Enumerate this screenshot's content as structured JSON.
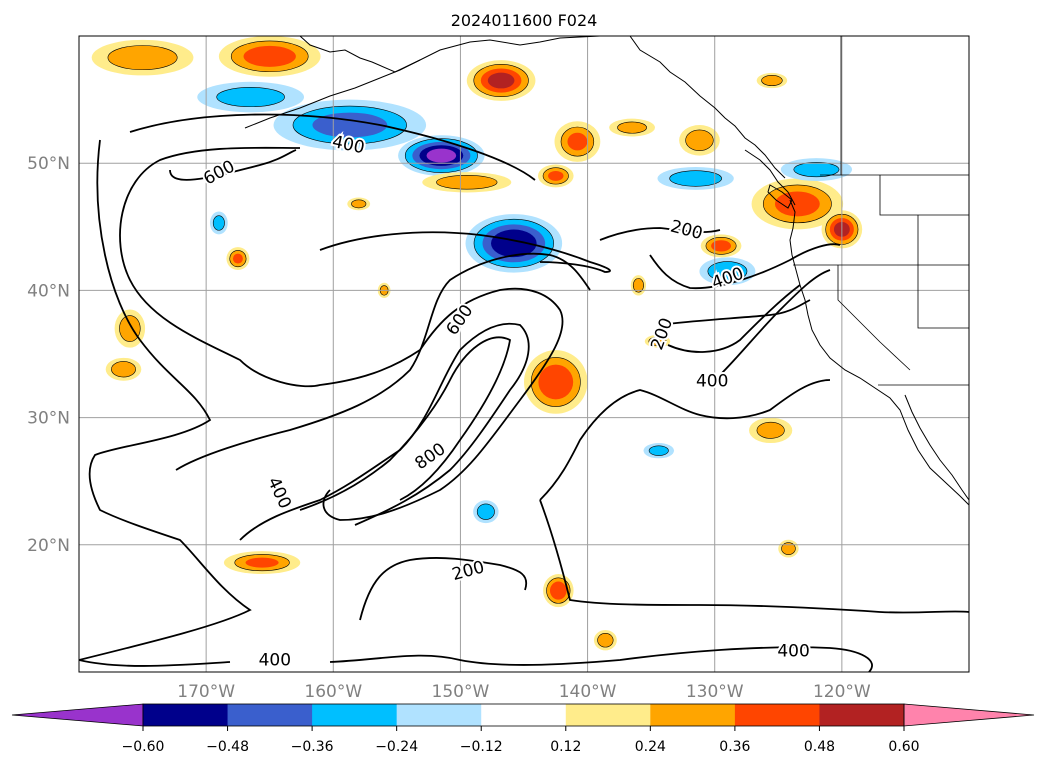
{
  "title": "2024011600 F024",
  "map": {
    "lon_range": [
      -180,
      -110
    ],
    "lat_range": [
      10,
      60
    ],
    "grid": true,
    "lat_labels": [
      {
        "lat": 50,
        "text": "50°N"
      },
      {
        "lat": 40,
        "text": "40°N"
      },
      {
        "lat": 30,
        "text": "30°N"
      },
      {
        "lat": 20,
        "text": "20°N"
      }
    ],
    "lon_labels": [
      {
        "lon": -170,
        "text": "170°W"
      },
      {
        "lon": -160,
        "text": "160°W"
      },
      {
        "lon": -150,
        "text": "150°W"
      },
      {
        "lon": -140,
        "text": "140°W"
      },
      {
        "lon": -130,
        "text": "130°W"
      },
      {
        "lon": -120,
        "text": "120°W"
      }
    ],
    "contour_labels": [
      {
        "text": "400",
        "lon": -158.8,
        "lat": 51.5,
        "rot": 12
      },
      {
        "text": "600",
        "lon": -169.0,
        "lat": 49.3,
        "rot": -28
      },
      {
        "text": "200",
        "lon": -132.2,
        "lat": 44.8,
        "rot": 15
      },
      {
        "text": "400",
        "lon": -129.0,
        "lat": 41.0,
        "rot": -20
      },
      {
        "text": "600",
        "lon": -150.1,
        "lat": 37.7,
        "rot": -55
      },
      {
        "text": "200",
        "lon": -134.2,
        "lat": 36.6,
        "rot": -70
      },
      {
        "text": "400",
        "lon": -130.2,
        "lat": 32.9,
        "rot": 0
      },
      {
        "text": "800",
        "lon": -152.4,
        "lat": 27.0,
        "rot": -35
      },
      {
        "text": "400",
        "lon": -164.2,
        "lat": 24.1,
        "rot": 65
      },
      {
        "text": "200",
        "lon": -149.4,
        "lat": 18.0,
        "rot": -15
      },
      {
        "text": "400",
        "lon": -123.8,
        "lat": 11.7,
        "rot": 0
      },
      {
        "text": "400",
        "lon": -164.6,
        "lat": 11.0,
        "rot": 0
      }
    ]
  },
  "colorbar": {
    "colors": [
      "#9933cc",
      "#00008b",
      "#3a5fcd",
      "#00bfff",
      "#b0e2ff",
      "#ffffff",
      "#ffec8b",
      "#ffa500",
      "#ff4500",
      "#b22222",
      "#ff83ac"
    ],
    "tick_labels": [
      "−0.60",
      "−0.48",
      "−0.36",
      "−0.24",
      "−0.12",
      "0.12",
      "0.24",
      "0.36",
      "0.48",
      "0.60"
    ]
  },
  "chart_data": {
    "type": "heatmap",
    "title": "2024011600 F024",
    "xlabel": "",
    "ylabel": "",
    "xlim": [
      -180,
      -110
    ],
    "ylim": [
      10,
      60
    ],
    "levels": [
      -0.6,
      -0.48,
      -0.36,
      -0.24,
      -0.12,
      0.12,
      0.24,
      0.36,
      0.48,
      0.6
    ],
    "contour_values": [
      200,
      400,
      600,
      800
    ],
    "blobs": [
      {
        "lon": -165.0,
        "lat": 58.4,
        "rx": 4.0,
        "ry": 1.6,
        "v": 0.42
      },
      {
        "lon": -166.5,
        "lat": 55.2,
        "rx": 4.2,
        "ry": 1.2,
        "v": -0.28
      },
      {
        "lon": -158.7,
        "lat": 53.0,
        "rx": 6.0,
        "ry": 2.0,
        "v": -0.4
      },
      {
        "lon": -151.5,
        "lat": 50.6,
        "rx": 3.4,
        "ry": 1.6,
        "v": -0.62
      },
      {
        "lon": -146.8,
        "lat": 56.5,
        "rx": 2.7,
        "ry": 1.6,
        "v": 0.5
      },
      {
        "lon": -175.0,
        "lat": 58.3,
        "rx": 4.0,
        "ry": 1.4,
        "v": 0.32
      },
      {
        "lon": -140.8,
        "lat": 51.7,
        "rx": 1.8,
        "ry": 1.6,
        "v": 0.36
      },
      {
        "lon": -131.5,
        "lat": 48.8,
        "rx": 3.0,
        "ry": 0.9,
        "v": -0.32
      },
      {
        "lon": -131.2,
        "lat": 51.8,
        "rx": 1.6,
        "ry": 1.2,
        "v": 0.32
      },
      {
        "lon": -136.5,
        "lat": 52.8,
        "rx": 1.8,
        "ry": 0.7,
        "v": 0.28
      },
      {
        "lon": -149.5,
        "lat": 48.5,
        "rx": 3.5,
        "ry": 0.8,
        "v": 0.32
      },
      {
        "lon": -142.5,
        "lat": 49.0,
        "rx": 1.4,
        "ry": 0.9,
        "v": 0.36
      },
      {
        "lon": -145.8,
        "lat": 43.7,
        "rx": 3.8,
        "ry": 2.3,
        "v": -0.58
      },
      {
        "lon": -123.5,
        "lat": 46.8,
        "rx": 3.6,
        "ry": 2.0,
        "v": 0.4
      },
      {
        "lon": -120.0,
        "lat": 44.8,
        "rx": 1.6,
        "ry": 1.5,
        "v": 0.5
      },
      {
        "lon": -129.5,
        "lat": 43.5,
        "rx": 1.6,
        "ry": 0.9,
        "v": 0.4
      },
      {
        "lon": -129.0,
        "lat": 41.5,
        "rx": 2.2,
        "ry": 1.1,
        "v": -0.34
      },
      {
        "lon": -122.0,
        "lat": 49.5,
        "rx": 2.8,
        "ry": 0.9,
        "v": -0.28
      },
      {
        "lon": -142.5,
        "lat": 32.8,
        "rx": 2.5,
        "ry": 2.5,
        "v": 0.45
      },
      {
        "lon": -176.0,
        "lat": 37.0,
        "rx": 1.2,
        "ry": 1.5,
        "v": 0.32
      },
      {
        "lon": -176.5,
        "lat": 33.8,
        "rx": 1.4,
        "ry": 0.9,
        "v": 0.32
      },
      {
        "lon": -165.6,
        "lat": 18.6,
        "rx": 3.0,
        "ry": 0.9,
        "v": 0.36
      },
      {
        "lon": -142.3,
        "lat": 16.4,
        "rx": 1.2,
        "ry": 1.3,
        "v": 0.45
      },
      {
        "lon": -138.6,
        "lat": 12.5,
        "rx": 0.9,
        "ry": 0.8,
        "v": 0.32
      },
      {
        "lon": -148.0,
        "lat": 22.6,
        "rx": 1.0,
        "ry": 0.9,
        "v": -0.32
      },
      {
        "lon": -134.4,
        "lat": 27.4,
        "rx": 1.2,
        "ry": 0.6,
        "v": -0.28
      },
      {
        "lon": -167.5,
        "lat": 42.5,
        "rx": 0.9,
        "ry": 0.9,
        "v": 0.36
      },
      {
        "lon": -169.0,
        "lat": 45.3,
        "rx": 0.7,
        "ry": 0.9,
        "v": -0.28
      },
      {
        "lon": -134.5,
        "lat": 36.0,
        "rx": 1.0,
        "ry": 0.5,
        "v": 0.32
      },
      {
        "lon": -125.6,
        "lat": 29.0,
        "rx": 1.7,
        "ry": 1.0,
        "v": 0.28
      },
      {
        "lon": -124.2,
        "lat": 19.7,
        "rx": 0.8,
        "ry": 0.7,
        "v": 0.32
      },
      {
        "lon": -125.5,
        "lat": 56.5,
        "rx": 1.2,
        "ry": 0.6,
        "v": 0.32
      },
      {
        "lon": -136.0,
        "lat": 40.4,
        "rx": 0.6,
        "ry": 0.8,
        "v": 0.32
      },
      {
        "lon": -158.0,
        "lat": 46.8,
        "rx": 0.9,
        "ry": 0.5,
        "v": 0.28
      },
      {
        "lon": -156.0,
        "lat": 40.0,
        "rx": 0.5,
        "ry": 0.6,
        "v": 0.28
      }
    ]
  }
}
